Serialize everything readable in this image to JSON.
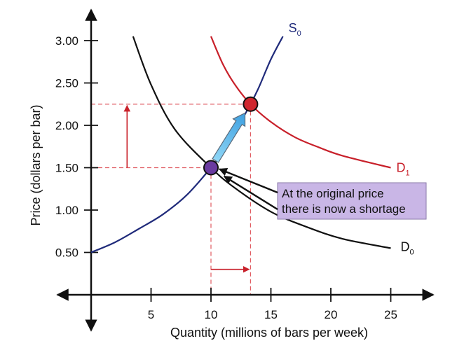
{
  "chart_data": {
    "type": "line",
    "xlabel": "Quantity (millions of bars per week)",
    "ylabel": "Price (dollars per bar)",
    "xlim": [
      -4,
      28
    ],
    "ylim": [
      0,
      3.25
    ],
    "x_ticks": [
      "5",
      "10",
      "15",
      "20",
      "25"
    ],
    "x_tick_values": [
      5,
      10,
      15,
      20,
      25
    ],
    "y_ticks": [
      "0.50",
      "1.00",
      "1.50",
      "2.00",
      "2.50",
      "3.00"
    ],
    "y_tick_values": [
      0.5,
      1.0,
      1.5,
      2.0,
      2.5,
      3.0
    ],
    "series": [
      {
        "name": "S",
        "sub": "0",
        "color": "#1f2a7a",
        "x": [
          0,
          2,
          4,
          6,
          8,
          10,
          11,
          12,
          13.3,
          14,
          15,
          16
        ],
        "y": [
          0.5,
          0.62,
          0.78,
          0.95,
          1.18,
          1.5,
          1.68,
          1.92,
          2.25,
          2.45,
          2.78,
          3.05
        ]
      },
      {
        "name": "D",
        "sub": "0",
        "color": "#111111",
        "x": [
          3.5,
          5,
          7,
          10,
          12,
          15,
          18,
          21,
          25
        ],
        "y": [
          3.05,
          2.48,
          1.95,
          1.5,
          1.26,
          0.98,
          0.8,
          0.66,
          0.55
        ]
      },
      {
        "name": "D",
        "sub": "1",
        "color": "#c8202a",
        "x": [
          10,
          11,
          12,
          13.3,
          15,
          17,
          19,
          21,
          25
        ],
        "y": [
          3.05,
          2.72,
          2.48,
          2.25,
          2.04,
          1.86,
          1.74,
          1.64,
          1.5
        ]
      }
    ],
    "points": [
      {
        "x": 10,
        "y": 1.5,
        "color": "#6a3aa0"
      },
      {
        "x": 13.3,
        "y": 2.25,
        "color": "#d0262e"
      }
    ],
    "reference_lines": {
      "x": [
        10,
        13.3
      ],
      "y": [
        1.5,
        2.25
      ],
      "color": "#e05a60"
    },
    "price_arrow": {
      "x": 3,
      "from": 1.5,
      "to": 2.25
    },
    "quantity_arrow": {
      "y": 0.3,
      "from": 10,
      "to": 13.3
    },
    "movement_arrow": {
      "from": [
        10,
        1.5
      ],
      "to": [
        13.3,
        2.25
      ]
    },
    "annotation": {
      "lines": [
        "At the original price",
        "there is now a shortage"
      ],
      "background": "#c9b6e6",
      "pointer_targets": [
        [
          10,
          1.5
        ],
        [
          10.4,
          1.44
        ]
      ]
    }
  }
}
